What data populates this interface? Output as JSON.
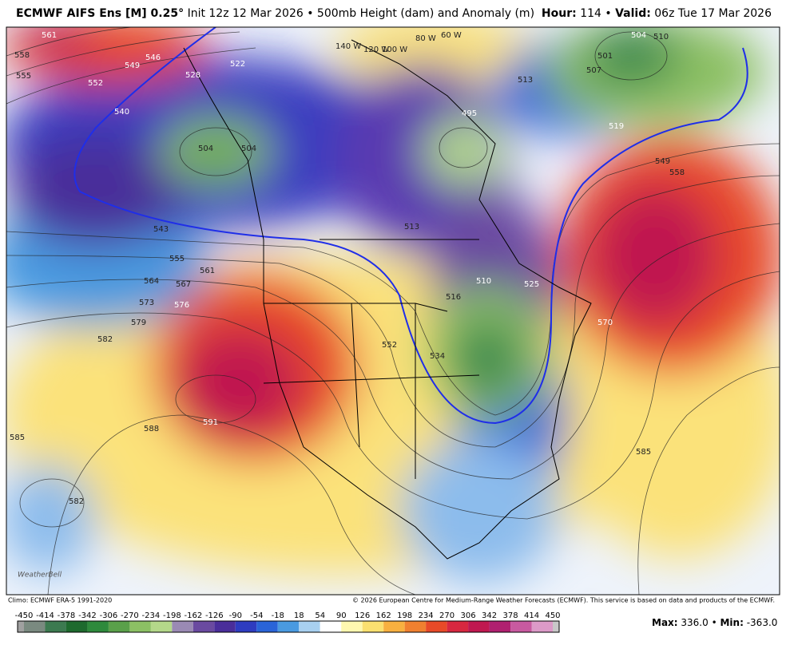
{
  "header": {
    "model": "ECMWF AIFS Ens [M] 0.25°",
    "description": "Init 12z 12 Mar 2026 • 500mb Height (dam) and Anomaly (m)",
    "hour_label": "Hour:",
    "hour": "114 •",
    "valid_label": "Valid:",
    "valid": "06z Tue 17 Mar 2026"
  },
  "map": {
    "logo": "WeatherBell",
    "longitudes": [
      "140 W",
      "120 W",
      "100 W",
      "80 W",
      "60 W"
    ],
    "contour_labels": [
      "561",
      "558",
      "555",
      "552",
      "549",
      "546",
      "540",
      "543",
      "504",
      "504",
      "528",
      "522",
      "555",
      "561",
      "564",
      "567",
      "573",
      "576",
      "579",
      "582",
      "588",
      "591",
      "585",
      "582",
      "495",
      "513",
      "516",
      "510",
      "525",
      "552",
      "534",
      "504",
      "501",
      "507",
      "510",
      "513",
      "519",
      "549",
      "558",
      "570",
      "585"
    ]
  },
  "footer": {
    "climo": "Climo: ECMWF ERA-5 1991-2020",
    "copyright": "© 2026 European Centre for Medium-Range Weather Forecasts (ECMWF). This service is based on data and products of the ECMWF."
  },
  "colorbar": {
    "ticks": [
      -450,
      -414,
      -378,
      -342,
      -306,
      -270,
      -234,
      -198,
      -162,
      -126,
      -90,
      -54,
      -18,
      18,
      54,
      90,
      126,
      162,
      198,
      234,
      270,
      306,
      342,
      378,
      414,
      450
    ],
    "colors": [
      "#a0a0a0",
      "#7a8a80",
      "#3c7a50",
      "#1e6a2e",
      "#2e8a3c",
      "#5aa04a",
      "#8cc064",
      "#b4d88a",
      "#9a8ab4",
      "#6a4aa0",
      "#4a2e9a",
      "#2e3cc0",
      "#2a64d8",
      "#4a9ae0",
      "#a8d0f0",
      "#ffffff",
      "#fff8b0",
      "#fbe070",
      "#f8b040",
      "#f08030",
      "#e84a28",
      "#d82840",
      "#c01850",
      "#b02070",
      "#c85aa0",
      "#dc9ac8",
      "#c8c8c8"
    ]
  },
  "stats": {
    "max_label": "Max:",
    "max": "336.0 •",
    "min_label": "Min:",
    "min": "-363.0"
  }
}
